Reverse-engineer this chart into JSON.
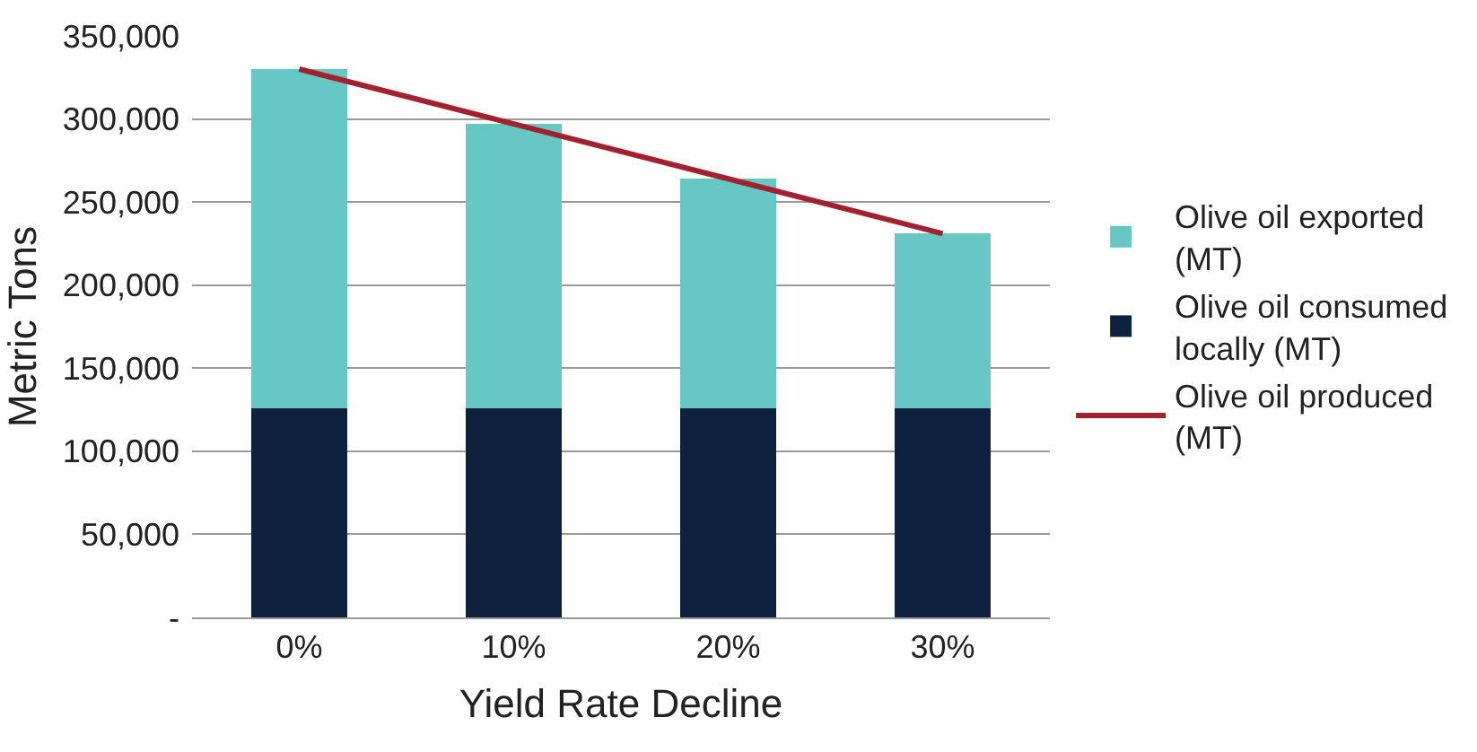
{
  "chart_data": {
    "type": "bar",
    "stacked": true,
    "xlabel": "Yield Rate Decline",
    "ylabel": "Metric Tons",
    "categories": [
      "0%",
      "10%",
      "20%",
      "30%"
    ],
    "series": [
      {
        "name": "Olive oil consumed locally (MT)",
        "color": "#0e2240",
        "values": [
          126000,
          126000,
          126000,
          126000
        ]
      },
      {
        "name": "Olive oil exported (MT)",
        "color": "#67c7c5",
        "values": [
          204000,
          171000,
          138000,
          105000
        ]
      },
      {
        "name": "Olive oil produced (MT)",
        "type": "line",
        "color": "#a3212e",
        "values": [
          330000,
          297000,
          264000,
          231000
        ]
      }
    ],
    "ylim": [
      0,
      350000
    ],
    "yticks": [
      {
        "value": 0,
        "label": "-"
      },
      {
        "value": 50000,
        "label": "50,000"
      },
      {
        "value": 100000,
        "label": "100,000"
      },
      {
        "value": 150000,
        "label": "150,000"
      },
      {
        "value": 200000,
        "label": "200,000"
      },
      {
        "value": 250000,
        "label": "250,000"
      },
      {
        "value": 300000,
        "label": "300,000"
      },
      {
        "value": 350000,
        "label": "350,000"
      }
    ],
    "grid": "y",
    "legend": "right",
    "marker": "none",
    "line_style": "solid"
  }
}
